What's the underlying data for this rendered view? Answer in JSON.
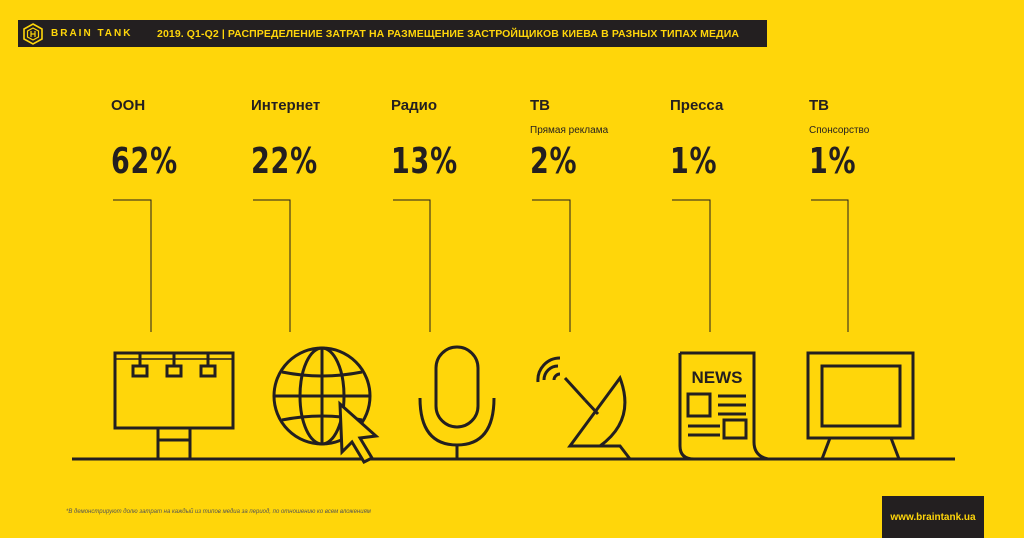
{
  "brand": {
    "name": "BRAIN TANK",
    "url": "www.braintank.ua"
  },
  "header": {
    "title": "2019. Q1-Q2 | РАСПРЕДЕЛЕНИЕ ЗАТРАТ НА РАЗМЕЩЕНИЕ ЗАСТРОЙЩИКОВ КИЕВА В РАЗНЫХ ТИПАХ МЕДИА"
  },
  "footnote": "*В демонстрируют долю затрат на каждый из типов медиа за период, по отношению ко всем вложениям",
  "colors": {
    "background": "#FFD60A",
    "ink": "#231F20"
  },
  "chart_data": {
    "type": "bar",
    "title": "2019. Q1-Q2 | РАСПРЕДЕЛЕНИЕ ЗАТРАТ НА РАЗМЕЩЕНИЕ ЗАСТРОЙЩИКОВ КИЕВА В РАЗНЫХ ТИПАХ МЕДИА",
    "categories": [
      "ООН",
      "Интернет",
      "Радио",
      "ТВ",
      "Пресса",
      "ТВ"
    ],
    "subcategories": [
      "",
      "",
      "",
      "Прямая реклама",
      "",
      "Спонсорство"
    ],
    "values": [
      62,
      22,
      13,
      2,
      1,
      1
    ],
    "labels": [
      "62%",
      "22%",
      "13%",
      "2%",
      "1%",
      "1%"
    ],
    "icons": [
      "billboard-icon",
      "globe-cursor-icon",
      "microphone-icon",
      "satellite-dish-icon",
      "newspaper-icon",
      "tv-icon"
    ],
    "icon_text": {
      "newspaper": "NEWS"
    }
  }
}
